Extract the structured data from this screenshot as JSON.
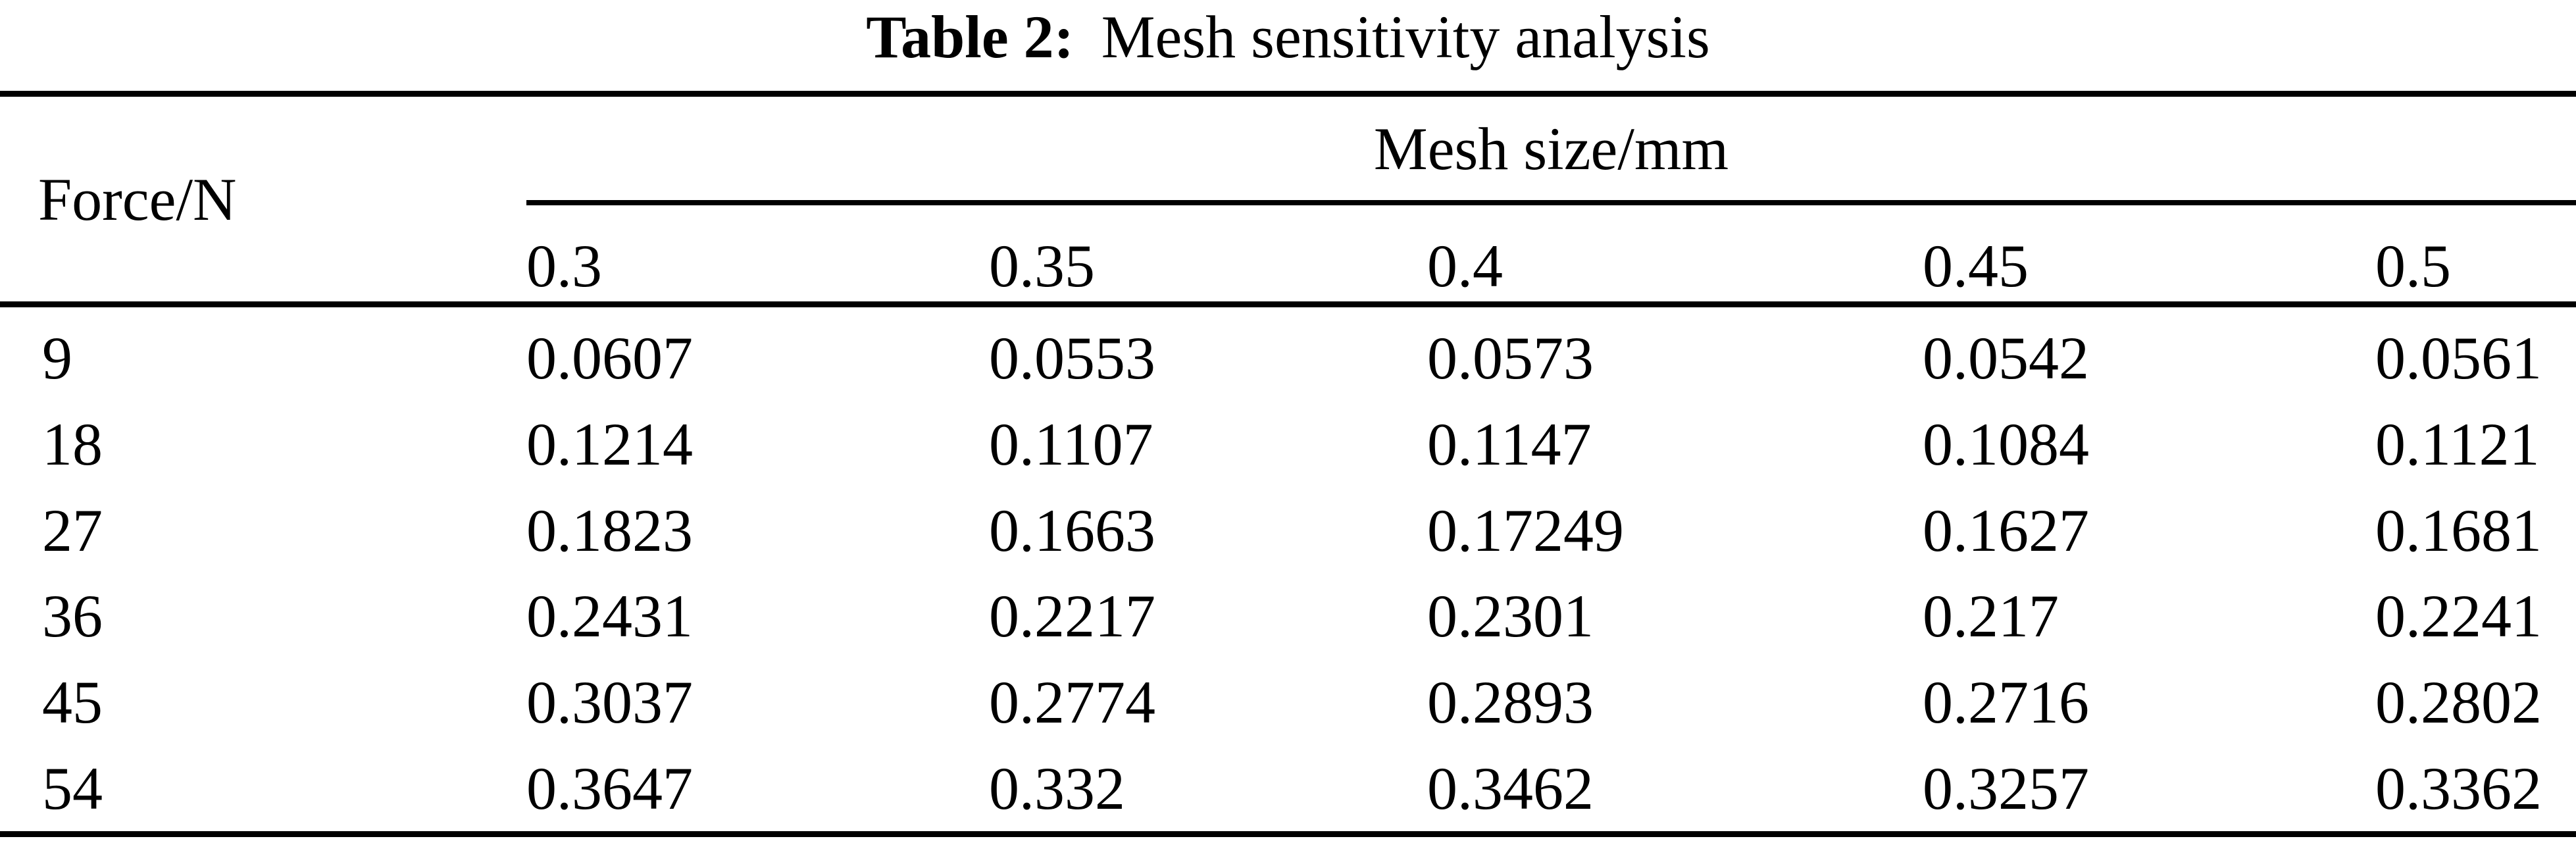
{
  "page": {
    "background": "#ffffff",
    "text_color": "#000000"
  },
  "title": {
    "prefix": "Table 2:",
    "text": "Mesh sensitivity analysis"
  },
  "table": {
    "corner_header": "Force/N",
    "group_header": "Mesh size/mm",
    "column_headers": [
      "0.3",
      "0.35",
      "0.4",
      "0.45",
      "0.5"
    ],
    "rows": [
      {
        "force": "9",
        "values": [
          "0.0607",
          "0.0553",
          "0.0573",
          "0.0542",
          "0.0561"
        ]
      },
      {
        "force": "18",
        "values": [
          "0.1214",
          "0.1107",
          "0.1147",
          "0.1084",
          "0.1121"
        ]
      },
      {
        "force": "27",
        "values": [
          "0.1823",
          "0.1663",
          "0.17249",
          "0.1627",
          "0.1681"
        ]
      },
      {
        "force": "36",
        "values": [
          "0.2431",
          "0.2217",
          "0.2301",
          "0.217",
          "0.2241"
        ]
      },
      {
        "force": "45",
        "values": [
          "0.3037",
          "0.2774",
          "0.2893",
          "0.2716",
          "0.2802"
        ]
      },
      {
        "force": "54",
        "values": [
          "0.3647",
          "0.332",
          "0.3462",
          "0.3257",
          "0.3362"
        ]
      }
    ]
  },
  "chart_data": {
    "type": "table",
    "title": "Table 2: Mesh sensitivity analysis",
    "row_axis_label": "Force/N",
    "column_axis_label": "Mesh size/mm",
    "columns_mesh_size_mm": [
      0.3,
      0.35,
      0.4,
      0.45,
      0.5
    ],
    "rows_force_n": [
      9,
      18,
      27,
      36,
      45,
      54
    ],
    "values": [
      [
        0.0607,
        0.0553,
        0.0573,
        0.0542,
        0.0561
      ],
      [
        0.1214,
        0.1107,
        0.1147,
        0.1084,
        0.1121
      ],
      [
        0.1823,
        0.1663,
        0.17249,
        0.1627,
        0.1681
      ],
      [
        0.2431,
        0.2217,
        0.2301,
        0.217,
        0.2241
      ],
      [
        0.3037,
        0.2774,
        0.2893,
        0.2716,
        0.2802
      ],
      [
        0.3647,
        0.332,
        0.3462,
        0.3257,
        0.3362
      ]
    ]
  }
}
